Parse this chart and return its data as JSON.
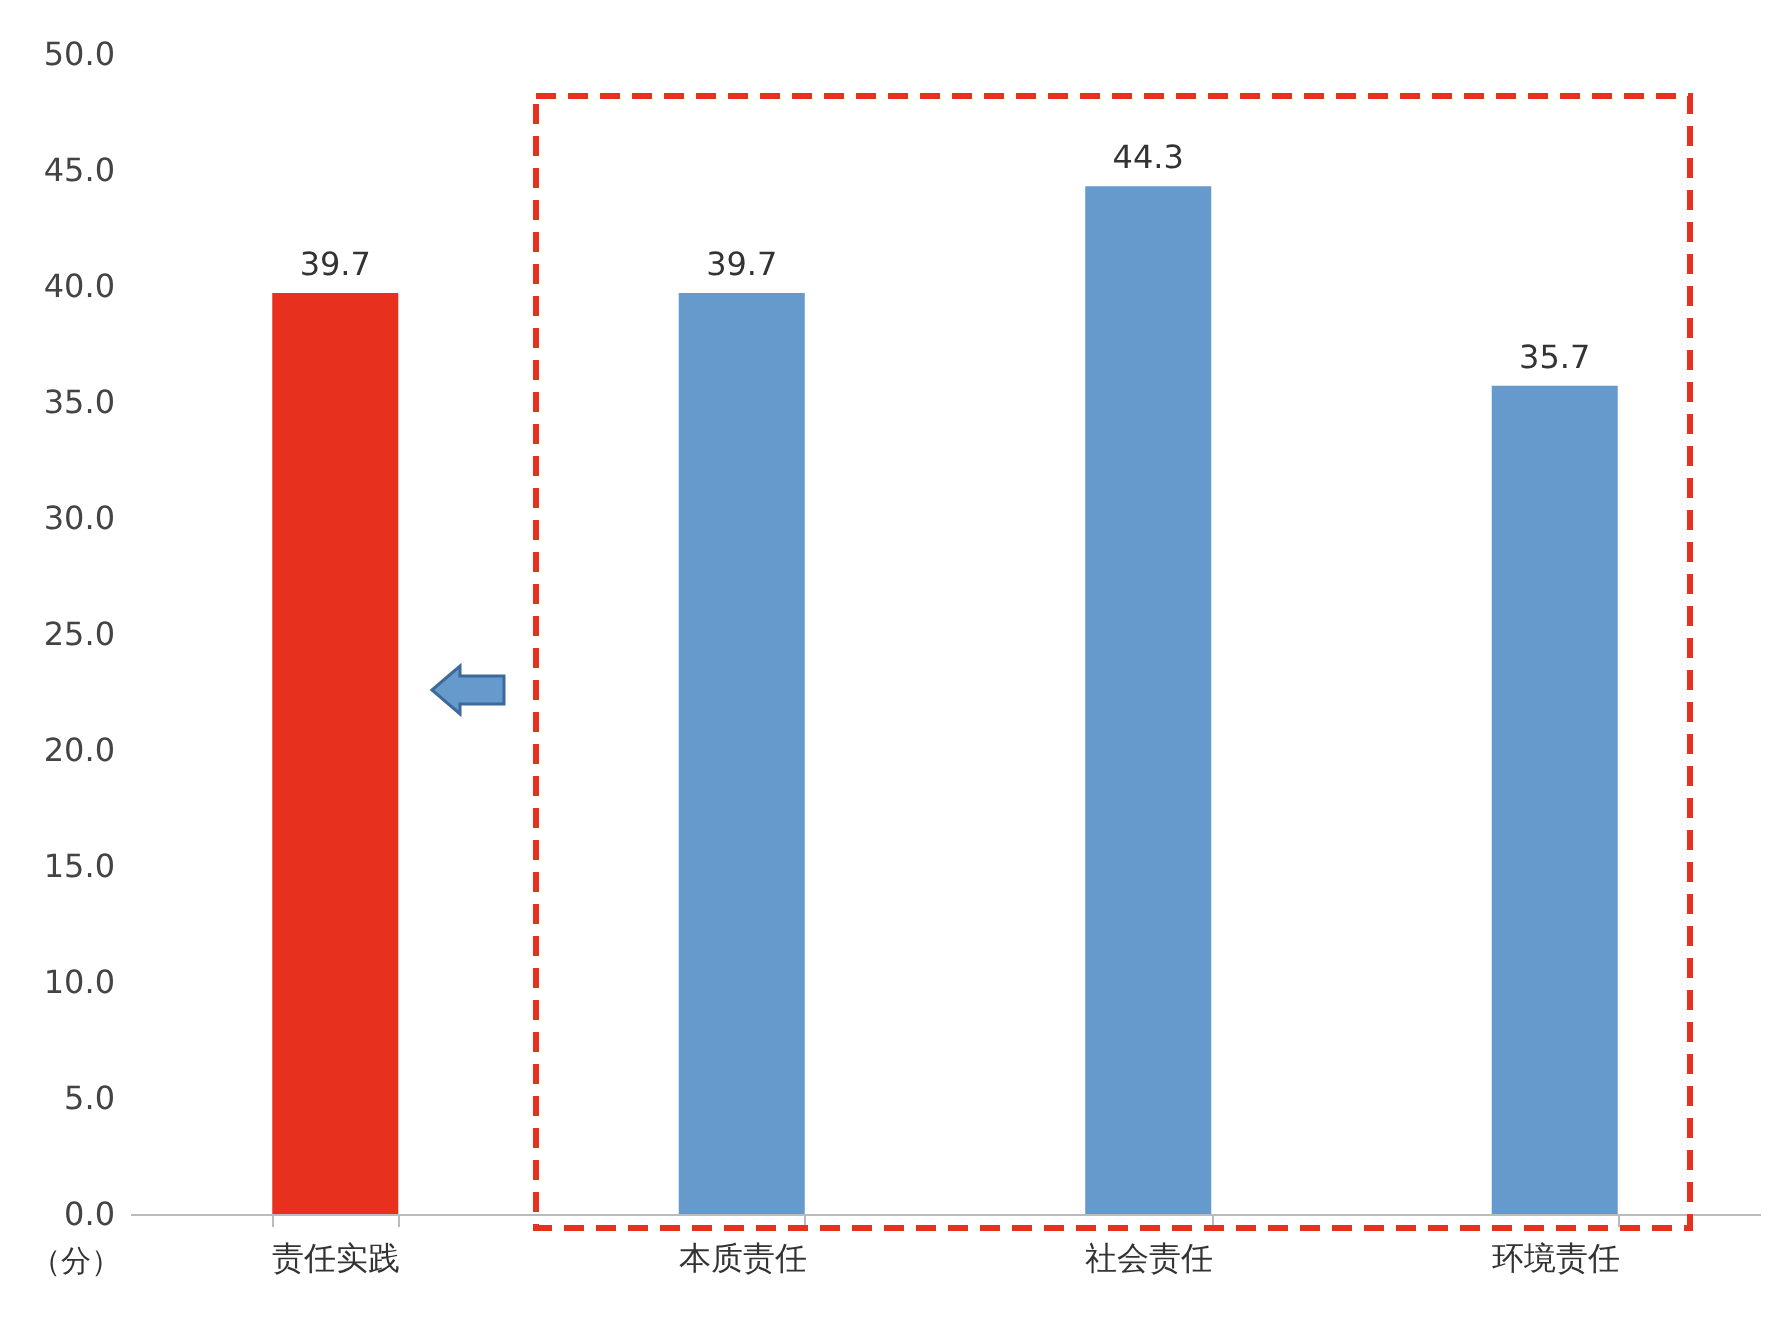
{
  "chart_data": {
    "type": "bar",
    "ylabel": "（分）",
    "categories": [
      "责任实践",
      "本质责任",
      "社会责任",
      "环境责任"
    ],
    "values": [
      39.7,
      39.7,
      44.3,
      35.7
    ],
    "colors": [
      "#e8301f",
      "#6699cc",
      "#6699cc",
      "#6699cc"
    ],
    "ylim": [
      0,
      50
    ],
    "yticks": [
      {
        "value": 0,
        "label": "0.0"
      },
      {
        "value": 5,
        "label": "5.0"
      },
      {
        "value": 10,
        "label": "10.0"
      },
      {
        "value": 15,
        "label": "15.0"
      },
      {
        "value": 20,
        "label": "20.0"
      },
      {
        "value": 25,
        "label": "25.0"
      },
      {
        "value": 30,
        "label": "30.0"
      },
      {
        "value": 35,
        "label": "35.0"
      },
      {
        "value": 40,
        "label": "40.0"
      },
      {
        "value": 45,
        "label": "45.0"
      },
      {
        "value": 50,
        "label": "50.0"
      }
    ],
    "data_labels": true,
    "grid": false,
    "legend": false
  }
}
